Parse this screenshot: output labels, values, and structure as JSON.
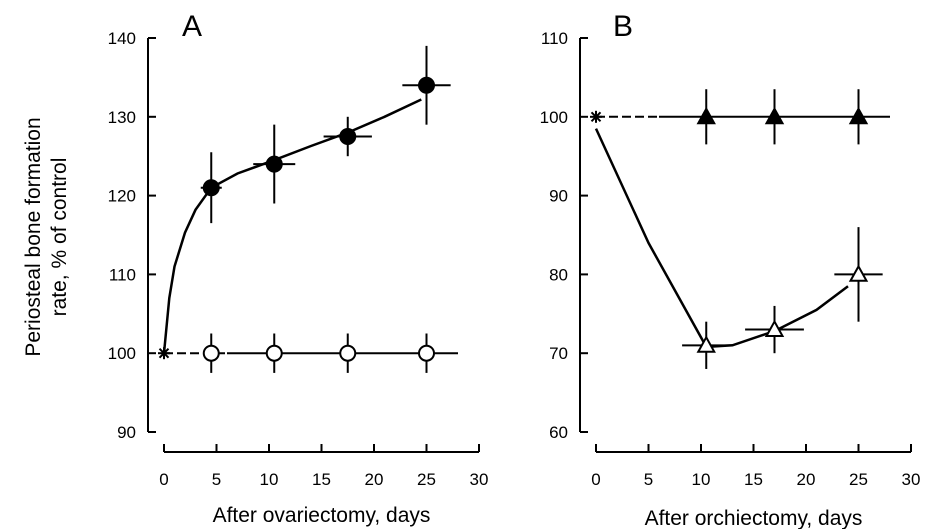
{
  "figure": {
    "ylabel_line1": "Periosteal bone formation",
    "ylabel_line2": "rate, % of control"
  },
  "chart_data": [
    {
      "type": "scatter",
      "panel": "A",
      "xlabel": "After ovariectomy, days",
      "ylabel": "Periosteal bone formation rate, % of control",
      "xlim": [
        0,
        30
      ],
      "ylim": [
        90,
        140
      ],
      "xticks": [
        0,
        5,
        10,
        15,
        20,
        25,
        30
      ],
      "yticks": [
        90,
        100,
        110,
        120,
        130,
        140
      ],
      "grid": false,
      "series": [
        {
          "marker": "filled-circle",
          "points": [
            {
              "x": 4.5,
              "y": 121,
              "xerr": 1,
              "yerr": 4.5
            },
            {
              "x": 10.5,
              "y": 124,
              "xerr": 2,
              "yerr": 5
            },
            {
              "x": 17.5,
              "y": 127.5,
              "xerr": 2.3,
              "yerr": 2.5
            },
            {
              "x": 25,
              "y": 134,
              "xerr": 2.3,
              "yerr": 5
            }
          ],
          "fit_curve": [
            [
              0,
              100
            ],
            [
              0.5,
              107
            ],
            [
              1,
              111
            ],
            [
              2,
              115.3
            ],
            [
              3,
              118.2
            ],
            [
              4.5,
              121
            ],
            [
              7,
              122.8
            ],
            [
              10.5,
              124.5
            ],
            [
              14,
              126.3
            ],
            [
              17.5,
              128
            ],
            [
              21,
              130
            ],
            [
              24.5,
              132.2
            ]
          ]
        },
        {
          "marker": "open-circle",
          "points": [
            {
              "x": 4.5,
              "y": 100,
              "xerr": 0,
              "yerr": 2.5
            },
            {
              "x": 10.5,
              "y": 100,
              "xerr": 0,
              "yerr": 2.5
            },
            {
              "x": 17.5,
              "y": 100,
              "xerr": 0,
              "yerr": 2.5
            },
            {
              "x": 25,
              "y": 100,
              "xerr": 0,
              "yerr": 2.5
            }
          ],
          "line": [
            [
              0,
              100
            ],
            [
              28,
              100
            ]
          ],
          "dashed_segment": [
            0,
            6
          ]
        }
      ],
      "baseline_marker": {
        "x": 0,
        "y": 100,
        "symbol": "star"
      }
    },
    {
      "type": "scatter",
      "panel": "B",
      "xlabel": "After orchiectomy, days",
      "ylabel": "",
      "xlim": [
        0,
        30
      ],
      "ylim": [
        60,
        110
      ],
      "xticks": [
        0,
        5,
        10,
        15,
        20,
        25,
        30
      ],
      "yticks": [
        60,
        70,
        80,
        90,
        100,
        110
      ],
      "grid": false,
      "series": [
        {
          "marker": "filled-triangle",
          "points": [
            {
              "x": 10.5,
              "y": 100,
              "xerr": 0,
              "yerr": 3.5
            },
            {
              "x": 17,
              "y": 100,
              "xerr": 0,
              "yerr": 3.5
            },
            {
              "x": 25,
              "y": 100,
              "xerr": 0,
              "yerr": 3.5
            }
          ],
          "line": [
            [
              0,
              100
            ],
            [
              28,
              100
            ]
          ],
          "dashed_segment": [
            0,
            6
          ]
        },
        {
          "marker": "open-triangle",
          "points": [
            {
              "x": 10.5,
              "y": 71,
              "xerr": 2.3,
              "yerr": 3
            },
            {
              "x": 17,
              "y": 73,
              "xerr": 2.8,
              "yerr": 3
            },
            {
              "x": 25,
              "y": 80,
              "xerr": 2.3,
              "yerr": 6
            }
          ],
          "fit_curve": [
            [
              0,
              98.5
            ],
            [
              5,
              84
            ],
            [
              10.5,
              70.8
            ],
            [
              13,
              71
            ],
            [
              17,
              72.8
            ],
            [
              21,
              75.5
            ],
            [
              24,
              78.5
            ]
          ]
        }
      ],
      "baseline_marker": {
        "x": 0,
        "y": 100,
        "symbol": "star"
      }
    }
  ]
}
